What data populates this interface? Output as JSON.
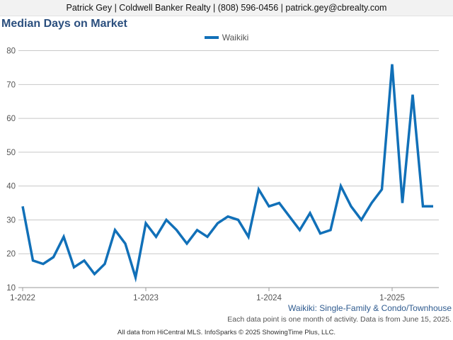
{
  "header": {
    "contact": "Patrick Gey | Coldwell Banker Realty | (808) 596-0456 | patrick.gey@cbrealty.com"
  },
  "footer": {
    "subtitle": "Waikiki: Single-Family & Condo/Townhouse",
    "note": "Each data point is one month of activity. Data is from June 15, 2025.",
    "credit": "All data from HiCentral MLS. InfoSparks © 2025 ShowingTime Plus, LLC."
  },
  "colors": {
    "series": "#1170b8",
    "title": "#2b4f7e",
    "grid": "#c8c8c8"
  },
  "chart_data": {
    "type": "line",
    "title": "Median Days on Market",
    "xlabel": "",
    "ylabel": "",
    "ylim": [
      10,
      82
    ],
    "yticks": [
      10,
      20,
      30,
      40,
      50,
      60,
      70,
      80
    ],
    "grid": true,
    "legend_position": "top",
    "xtick_labels": [
      "1-2022",
      "1-2023",
      "1-2024",
      "1-2025"
    ],
    "series": [
      {
        "name": "Waikiki",
        "x": [
          "2022-01",
          "2022-02",
          "2022-03",
          "2022-04",
          "2022-05",
          "2022-06",
          "2022-07",
          "2022-08",
          "2022-09",
          "2022-10",
          "2022-11",
          "2022-12",
          "2023-01",
          "2023-02",
          "2023-03",
          "2023-04",
          "2023-05",
          "2023-06",
          "2023-07",
          "2023-08",
          "2023-09",
          "2023-10",
          "2023-11",
          "2023-12",
          "2024-01",
          "2024-02",
          "2024-03",
          "2024-04",
          "2024-05",
          "2024-06",
          "2024-07",
          "2024-08",
          "2024-09",
          "2024-10",
          "2024-11",
          "2024-12",
          "2025-01",
          "2025-02",
          "2025-03",
          "2025-04",
          "2025-05"
        ],
        "values": [
          34,
          18,
          17,
          19,
          25,
          16,
          18,
          14,
          17,
          27,
          23,
          13,
          29,
          25,
          30,
          27,
          23,
          27,
          25,
          29,
          31,
          30,
          25,
          39,
          34,
          35,
          31,
          27,
          32,
          26,
          27,
          40,
          34,
          30,
          35,
          39,
          76,
          35,
          67,
          34,
          34
        ]
      }
    ]
  }
}
